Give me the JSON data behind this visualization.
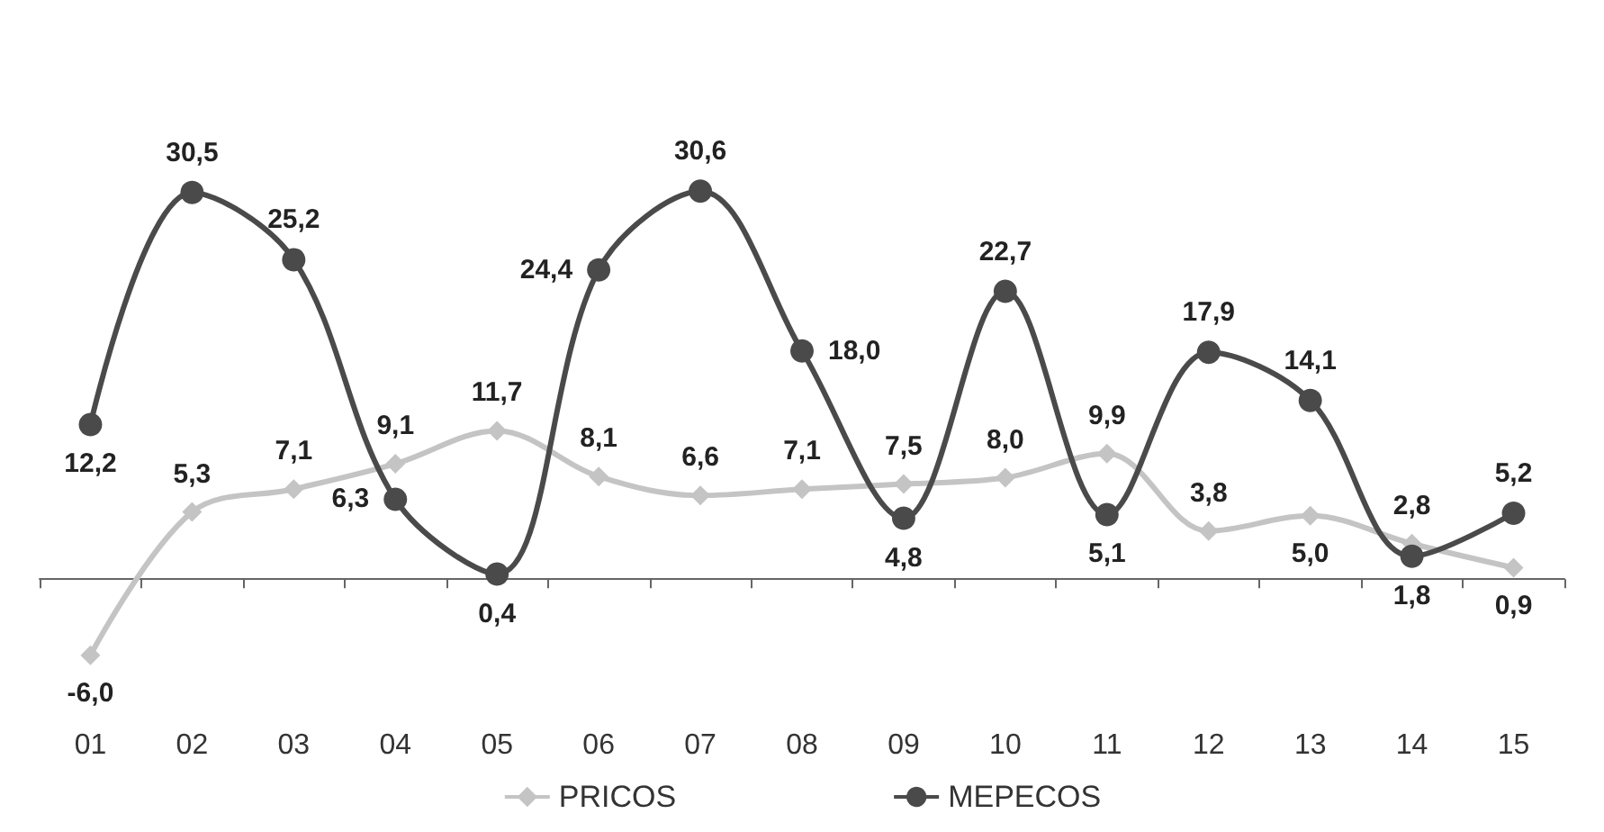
{
  "chart_data": {
    "type": "line",
    "categories": [
      "01",
      "02",
      "03",
      "04",
      "05",
      "06",
      "07",
      "08",
      "09",
      "10",
      "11",
      "12",
      "13",
      "14",
      "15"
    ],
    "series": [
      {
        "name": "PRICOS",
        "color": "#c4c4c4",
        "marker": "diamond",
        "values": [
          -6.0,
          5.3,
          7.1,
          9.1,
          11.7,
          8.1,
          6.6,
          7.1,
          7.5,
          8.0,
          9.9,
          3.8,
          5.0,
          2.8,
          0.9
        ],
        "value_labels": [
          "-6,0",
          "5,3",
          "7,1",
          "9,1",
          "11,7",
          "8,1",
          "6,6",
          "7,1",
          "7,5",
          "8,0",
          "9,9",
          "3,8",
          "5,0",
          "2,8",
          "0,9"
        ]
      },
      {
        "name": "MEPECOS",
        "color": "#4a4a4a",
        "marker": "circle",
        "values": [
          12.2,
          30.5,
          25.2,
          6.3,
          0.4,
          24.4,
          30.6,
          18.0,
          4.8,
          22.7,
          5.1,
          17.9,
          14.1,
          1.8,
          5.2
        ],
        "value_labels": [
          "12,2",
          "30,5",
          "25,2",
          "6,3",
          "0,4",
          "24,4",
          "30,6",
          "18,0",
          "4,8",
          "22,7",
          "5,1",
          "17,9",
          "14,1",
          "1,8",
          "5,2"
        ]
      }
    ],
    "legend": "bottom",
    "grid": false,
    "tick_labels": "x"
  }
}
